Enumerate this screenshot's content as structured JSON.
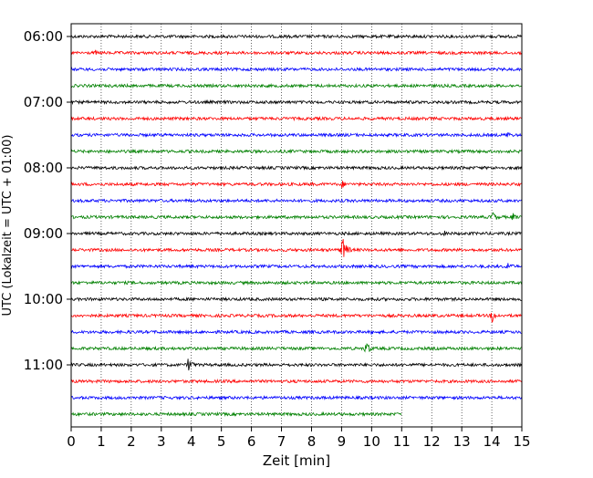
{
  "chart_data": {
    "type": "line",
    "title": "",
    "xlabel": "Zeit  [min]",
    "ylabel": "UTC (Lokalzeit = UTC + 01:00)",
    "xlim": [
      0,
      15
    ],
    "x_ticks": [
      "0",
      "1",
      "2",
      "3",
      "4",
      "5",
      "6",
      "7",
      "8",
      "9",
      "10",
      "11",
      "12",
      "13",
      "14",
      "15"
    ],
    "y_tick_labels": [
      "06:00",
      "07:00",
      "08:00",
      "09:00",
      "10:00",
      "11:00"
    ],
    "grid": "vertical dotted",
    "trace_colors": [
      "#000000",
      "#ff0000",
      "#0000ff",
      "#008000"
    ],
    "traces": [
      {
        "start": "06:00",
        "end_min": 15,
        "events": []
      },
      {
        "start": "06:15",
        "end_min": 15,
        "events": [
          {
            "t": 0.8,
            "amp": 3
          }
        ]
      },
      {
        "start": "06:30",
        "end_min": 15,
        "events": []
      },
      {
        "start": "06:45",
        "end_min": 15,
        "events": []
      },
      {
        "start": "07:00",
        "end_min": 15,
        "events": []
      },
      {
        "start": "07:15",
        "end_min": 15,
        "events": []
      },
      {
        "start": "07:30",
        "end_min": 15,
        "events": [
          {
            "t": 14.5,
            "amp": 5
          }
        ]
      },
      {
        "start": "07:45",
        "end_min": 15,
        "events": [
          {
            "t": 5.0,
            "amp": 2
          },
          {
            "t": 13.4,
            "amp": 2
          }
        ]
      },
      {
        "start": "08:00",
        "end_min": 15,
        "events": [
          {
            "t": 13.0,
            "amp": 3
          }
        ]
      },
      {
        "start": "08:15",
        "end_min": 15,
        "events": [
          {
            "t": 2.0,
            "amp": 2
          },
          {
            "t": 6.5,
            "amp": 2
          },
          {
            "t": 8.0,
            "amp": 3
          },
          {
            "t": 9.0,
            "amp": 5
          },
          {
            "t": 10.0,
            "amp": 2
          }
        ]
      },
      {
        "start": "08:30",
        "end_min": 15,
        "events": [
          {
            "t": 1.3,
            "amp": 2
          },
          {
            "t": 4.0,
            "amp": 3
          }
        ]
      },
      {
        "start": "08:45",
        "end_min": 15,
        "events": [
          {
            "t": 14.0,
            "amp": 8
          },
          {
            "t": 14.7,
            "amp": 5
          }
        ]
      },
      {
        "start": "09:00",
        "end_min": 15,
        "events": [
          {
            "t": 12.4,
            "amp": 4
          }
        ]
      },
      {
        "start": "09:15",
        "end_min": 15,
        "events": [
          {
            "t": 9.0,
            "amp": 18
          }
        ]
      },
      {
        "start": "09:30",
        "end_min": 15,
        "events": [
          {
            "t": 14.5,
            "amp": 7
          },
          {
            "t": 11.4,
            "amp": 2
          }
        ]
      },
      {
        "start": "09:45",
        "end_min": 15,
        "events": []
      },
      {
        "start": "10:00",
        "end_min": 15,
        "events": [
          {
            "t": 10.0,
            "amp": 3
          },
          {
            "t": 8.1,
            "amp": 2
          }
        ]
      },
      {
        "start": "10:15",
        "end_min": 15,
        "events": [
          {
            "t": 14.0,
            "amp": 9
          }
        ]
      },
      {
        "start": "10:30",
        "end_min": 15,
        "events": [
          {
            "t": 10.0,
            "amp": 3
          }
        ]
      },
      {
        "start": "10:45",
        "end_min": 15,
        "events": [
          {
            "t": 9.8,
            "amp": 9
          }
        ]
      },
      {
        "start": "11:00",
        "end_min": 15,
        "events": [
          {
            "t": 3.9,
            "amp": 9
          }
        ]
      },
      {
        "start": "11:15",
        "end_min": 15,
        "events": []
      },
      {
        "start": "11:30",
        "end_min": 15,
        "events": [
          {
            "t": 10.0,
            "amp": 2
          }
        ]
      },
      {
        "start": "11:45",
        "end_min": 11,
        "events": []
      }
    ]
  }
}
